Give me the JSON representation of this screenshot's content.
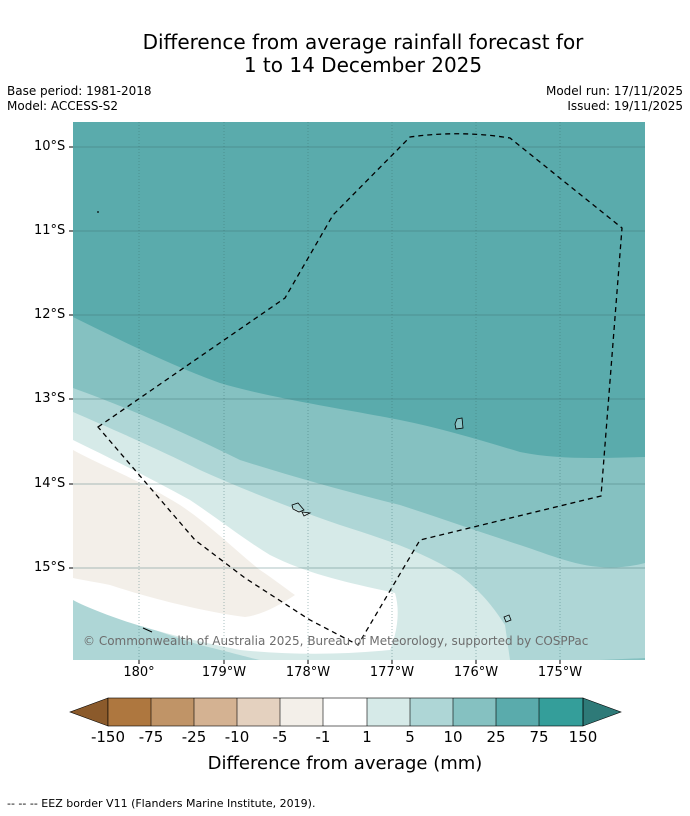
{
  "title": {
    "line1": "Difference from average rainfall forecast for",
    "line2": "1 to 14 December 2025"
  },
  "meta": {
    "base_period": "Base period: 1981-2018",
    "model": "Model: ACCESS-S2",
    "model_run": "Model run: 17/11/2025",
    "issued": "Issued: 19/11/2025"
  },
  "map": {
    "latitude_labels": [
      "10°S",
      "11°S",
      "12°S",
      "13°S",
      "14°S",
      "15°S"
    ],
    "longitude_labels": [
      "180°",
      "179°W",
      "178°W",
      "177°W",
      "176°W",
      "175°W"
    ],
    "copyright": "© Commonwealth of Australia 2025, Bureau of Meteorology, supported by COSPPac",
    "colors": {
      "c150_plus": "#2e7a78",
      "c75_150": "#349e9a",
      "c25_75": "#5aabac",
      "c10_25": "#85c1c1",
      "c5_10": "#aed6d6",
      "c1_5": "#d6eae8",
      "cm1_1": "#ffffff",
      "cm5_m1": "#f3efe9",
      "cm10_m5": "#e4d1bf",
      "cm25_m10": "#d4b292",
      "cm75_m25": "#c09467",
      "cm150_m75": "#ae773f",
      "cm150_minus": "#8b5a2b"
    }
  },
  "colorbar": {
    "ticks": [
      "-150",
      "-75",
      "-25",
      "-10",
      "-5",
      "-1",
      "1",
      "5",
      "10",
      "25",
      "75",
      "150"
    ],
    "label": "Difference from average (mm)"
  },
  "footnote": "--  --  -- EEZ border V11 (Flanders Marine Institute, 2019)."
}
